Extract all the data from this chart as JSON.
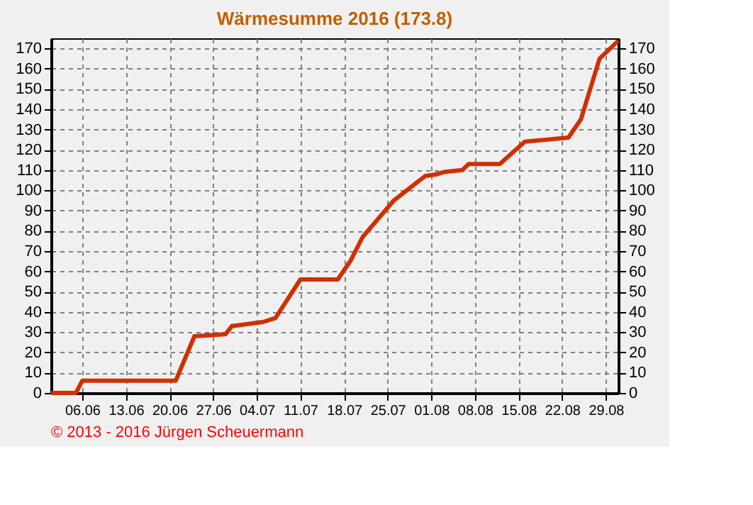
{
  "chart_data": {
    "type": "line",
    "title": "Wärmesumme  2016  (173.8)",
    "x": [
      "2016-06-01",
      "2016-06-05",
      "2016-06-06",
      "2016-06-21",
      "2016-06-24",
      "2016-06-29",
      "2016-06-30",
      "2016-07-05",
      "2016-07-07",
      "2016-07-11",
      "2016-07-17",
      "2016-07-19",
      "2016-07-21",
      "2016-07-26",
      "2016-07-31",
      "2016-08-02",
      "2016-08-03",
      "2016-08-06",
      "2016-08-07",
      "2016-08-12",
      "2016-08-16",
      "2016-08-23",
      "2016-08-25",
      "2016-08-27",
      "2016-08-28",
      "2016-08-31"
    ],
    "series": [
      {
        "color": "#d03000",
        "values": [
          0,
          0,
          6,
          6,
          28,
          29,
          33,
          35,
          37,
          56,
          56,
          65,
          77,
          95,
          107,
          108,
          109,
          110,
          113,
          113,
          124,
          126,
          135,
          155,
          165,
          173.8
        ]
      }
    ],
    "xlim": [
      "2016-06-01",
      "2016-08-31"
    ],
    "xticks": [
      {
        "value": "2016-06-06",
        "label": "06.06"
      },
      {
        "value": "2016-06-13",
        "label": "13.06"
      },
      {
        "value": "2016-06-20",
        "label": "20.06"
      },
      {
        "value": "2016-06-27",
        "label": "27.06"
      },
      {
        "value": "2016-07-04",
        "label": "04.07"
      },
      {
        "value": "2016-07-11",
        "label": "11.07"
      },
      {
        "value": "2016-07-18",
        "label": "18.07"
      },
      {
        "value": "2016-07-25",
        "label": "25.07"
      },
      {
        "value": "2016-08-01",
        "label": "01.08"
      },
      {
        "value": "2016-08-08",
        "label": "08.08"
      },
      {
        "value": "2016-08-15",
        "label": "15.08"
      },
      {
        "value": "2016-08-22",
        "label": "22.08"
      },
      {
        "value": "2016-08-29",
        "label": "29.08"
      }
    ],
    "ylim": [
      0,
      175
    ],
    "yticks": [
      0,
      10,
      20,
      30,
      40,
      50,
      60,
      70,
      80,
      90,
      100,
      110,
      120,
      130,
      140,
      150,
      160,
      170
    ],
    "y2lim": [
      0,
      175
    ],
    "y2ticks": [
      0,
      10,
      20,
      30,
      40,
      50,
      60,
      70,
      80,
      90,
      100,
      110,
      120,
      130,
      140,
      150,
      160,
      170
    ],
    "grid": true,
    "marker": "none",
    "line_style": "solid",
    "annotations": [
      "© 2013 - 2016 Jürgen Scheuermann"
    ]
  }
}
